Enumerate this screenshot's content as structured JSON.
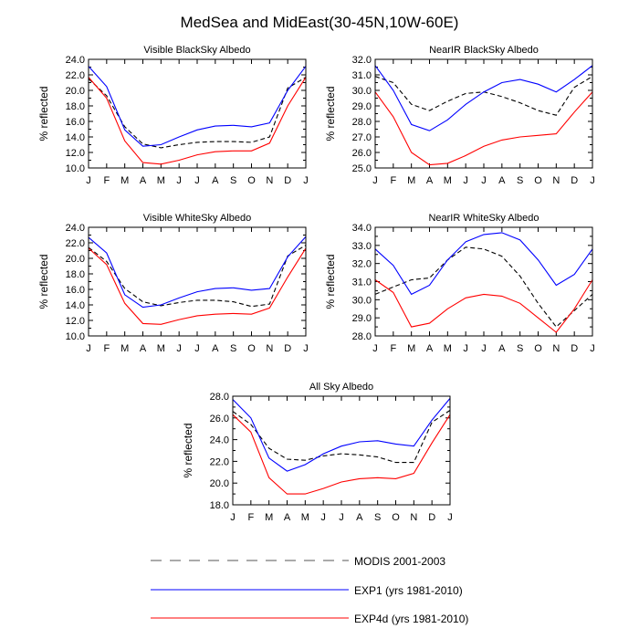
{
  "page_title": "MedSea and MidEast(30-45N,10W-60E)",
  "colors": {
    "modis": "#000000",
    "exp1": "#0000ff",
    "exp4d": "#ff0000"
  },
  "legend": [
    {
      "key": "modis",
      "label": "MODIS 2001-2003",
      "style": "dashed"
    },
    {
      "key": "exp1",
      "label": "EXP1 (yrs 1981-2010)",
      "style": "solid"
    },
    {
      "key": "exp4d",
      "label": "EXP4d (yrs 1981-2010)",
      "style": "solid"
    }
  ],
  "chart_data": [
    {
      "type": "line",
      "title": "Visible BlackSky Albedo",
      "ylabel": "% reflected",
      "categories": [
        "J",
        "F",
        "M",
        "A",
        "M",
        "J",
        "J",
        "A",
        "S",
        "O",
        "N",
        "D",
        "J"
      ],
      "ylim": [
        10,
        24
      ],
      "yticks": [
        10,
        12,
        14,
        16,
        18,
        20,
        22,
        24
      ],
      "ytick_labels": [
        "10.0",
        "12.0",
        "14.0",
        "16.0",
        "18.0",
        "20.0",
        "22.0",
        "24.0"
      ],
      "series": [
        {
          "name": "MODIS 2001-2003",
          "key": "modis",
          "values": [
            21.5,
            19.3,
            15.3,
            13.1,
            12.6,
            13.0,
            13.3,
            13.4,
            13.4,
            13.3,
            14.0,
            20.3,
            21.7
          ]
        },
        {
          "name": "EXP1 (yrs 1981-2010)",
          "key": "exp1",
          "values": [
            23.1,
            20.5,
            14.9,
            12.8,
            13.0,
            14.0,
            14.9,
            15.4,
            15.5,
            15.3,
            15.8,
            20.0,
            23.1
          ]
        },
        {
          "name": "EXP4d (yrs 1981-2010)",
          "key": "exp4d",
          "values": [
            21.7,
            19.0,
            13.5,
            10.7,
            10.5,
            11.0,
            11.7,
            12.1,
            12.2,
            12.2,
            13.2,
            18.0,
            21.7
          ]
        }
      ]
    },
    {
      "type": "line",
      "title": "NearIR BlackSky Albedo",
      "ylabel": "% reflected",
      "categories": [
        "J",
        "F",
        "M",
        "A",
        "M",
        "J",
        "J",
        "A",
        "S",
        "O",
        "N",
        "D",
        "J"
      ],
      "ylim": [
        25,
        32
      ],
      "yticks": [
        25,
        26,
        27,
        28,
        29,
        30,
        31,
        32
      ],
      "ytick_labels": [
        "25.0",
        "26.0",
        "27.0",
        "28.0",
        "29.0",
        "30.0",
        "31.0",
        "32.0"
      ],
      "series": [
        {
          "name": "MODIS 2001-2003",
          "key": "modis",
          "values": [
            30.9,
            30.5,
            29.1,
            28.7,
            29.3,
            29.8,
            29.9,
            29.6,
            29.2,
            28.7,
            28.4,
            30.2,
            30.9
          ]
        },
        {
          "name": "EXP1 (yrs 1981-2010)",
          "key": "exp1",
          "values": [
            31.6,
            30.0,
            27.8,
            27.4,
            28.1,
            29.1,
            29.9,
            30.5,
            30.7,
            30.4,
            29.9,
            30.7,
            31.6
          ]
        },
        {
          "name": "EXP4d (yrs 1981-2010)",
          "key": "exp4d",
          "values": [
            29.9,
            28.3,
            26.0,
            25.2,
            25.3,
            25.8,
            26.4,
            26.8,
            27.0,
            27.1,
            27.2,
            28.6,
            29.9
          ]
        }
      ]
    },
    {
      "type": "line",
      "title": "Visible WhiteSky Albedo",
      "ylabel": "% reflected",
      "categories": [
        "J",
        "F",
        "M",
        "A",
        "M",
        "J",
        "J",
        "A",
        "S",
        "O",
        "N",
        "D",
        "J"
      ],
      "ylim": [
        10,
        24
      ],
      "yticks": [
        10,
        12,
        14,
        16,
        18,
        20,
        22,
        24
      ],
      "ytick_labels": [
        "10.0",
        "12.0",
        "14.0",
        "16.0",
        "18.0",
        "20.0",
        "22.0",
        "24.0"
      ],
      "series": [
        {
          "name": "MODIS 2001-2003",
          "key": "modis",
          "values": [
            21.4,
            19.6,
            16.1,
            14.4,
            13.9,
            14.3,
            14.6,
            14.6,
            14.4,
            13.8,
            14.1,
            20.3,
            21.7
          ]
        },
        {
          "name": "EXP1 (yrs 1981-2010)",
          "key": "exp1",
          "values": [
            22.7,
            20.7,
            15.3,
            13.7,
            14.0,
            14.9,
            15.7,
            16.1,
            16.2,
            15.9,
            16.1,
            20.2,
            22.8
          ]
        },
        {
          "name": "EXP4d (yrs 1981-2010)",
          "key": "exp4d",
          "values": [
            21.3,
            19.2,
            14.2,
            11.6,
            11.5,
            12.1,
            12.6,
            12.8,
            12.9,
            12.8,
            13.6,
            17.6,
            21.3
          ]
        }
      ]
    },
    {
      "type": "line",
      "title": "NearIR WhiteSky Albedo",
      "ylabel": "% reflected",
      "categories": [
        "J",
        "F",
        "M",
        "A",
        "M",
        "J",
        "J",
        "A",
        "S",
        "O",
        "N",
        "D",
        "J"
      ],
      "ylim": [
        28,
        34
      ],
      "yticks": [
        28,
        29,
        30,
        31,
        32,
        33,
        34
      ],
      "ytick_labels": [
        "28.0",
        "29.0",
        "30.0",
        "31.0",
        "32.0",
        "33.0",
        "34.0"
      ],
      "series": [
        {
          "name": "MODIS 2001-2003",
          "key": "modis",
          "values": [
            30.3,
            30.7,
            31.1,
            31.2,
            32.2,
            32.9,
            32.8,
            32.4,
            31.3,
            29.8,
            28.5,
            29.4,
            30.3
          ]
        },
        {
          "name": "EXP1 (yrs 1981-2010)",
          "key": "exp1",
          "values": [
            32.8,
            31.9,
            30.3,
            30.8,
            32.2,
            33.2,
            33.6,
            33.7,
            33.3,
            32.2,
            30.8,
            31.4,
            32.8
          ]
        },
        {
          "name": "EXP4d (yrs 1981-2010)",
          "key": "exp4d",
          "values": [
            31.1,
            30.4,
            28.5,
            28.7,
            29.5,
            30.1,
            30.3,
            30.2,
            29.8,
            29.0,
            28.2,
            29.5,
            31.1
          ]
        }
      ]
    },
    {
      "type": "line",
      "title": "All Sky Albedo",
      "ylabel": "% reflected",
      "categories": [
        "J",
        "F",
        "M",
        "A",
        "M",
        "J",
        "J",
        "A",
        "S",
        "O",
        "N",
        "D",
        "J"
      ],
      "ylim": [
        18,
        28
      ],
      "yticks": [
        18,
        20,
        22,
        24,
        26,
        28
      ],
      "ytick_labels": [
        "18.0",
        "20.0",
        "22.0",
        "24.0",
        "26.0",
        "28.0"
      ],
      "series": [
        {
          "name": "MODIS 2001-2003",
          "key": "modis",
          "values": [
            26.6,
            25.4,
            23.2,
            22.2,
            22.1,
            22.5,
            22.7,
            22.6,
            22.4,
            21.9,
            21.9,
            25.6,
            26.7
          ]
        },
        {
          "name": "EXP1 (yrs 1981-2010)",
          "key": "exp1",
          "values": [
            27.7,
            26.0,
            22.3,
            21.1,
            21.7,
            22.7,
            23.4,
            23.8,
            23.9,
            23.6,
            23.4,
            25.8,
            27.8
          ]
        },
        {
          "name": "EXP4d (yrs 1981-2010)",
          "key": "exp4d",
          "values": [
            26.3,
            24.7,
            20.5,
            19.0,
            19.0,
            19.5,
            20.1,
            20.4,
            20.5,
            20.4,
            20.9,
            23.7,
            26.3
          ]
        }
      ]
    }
  ]
}
